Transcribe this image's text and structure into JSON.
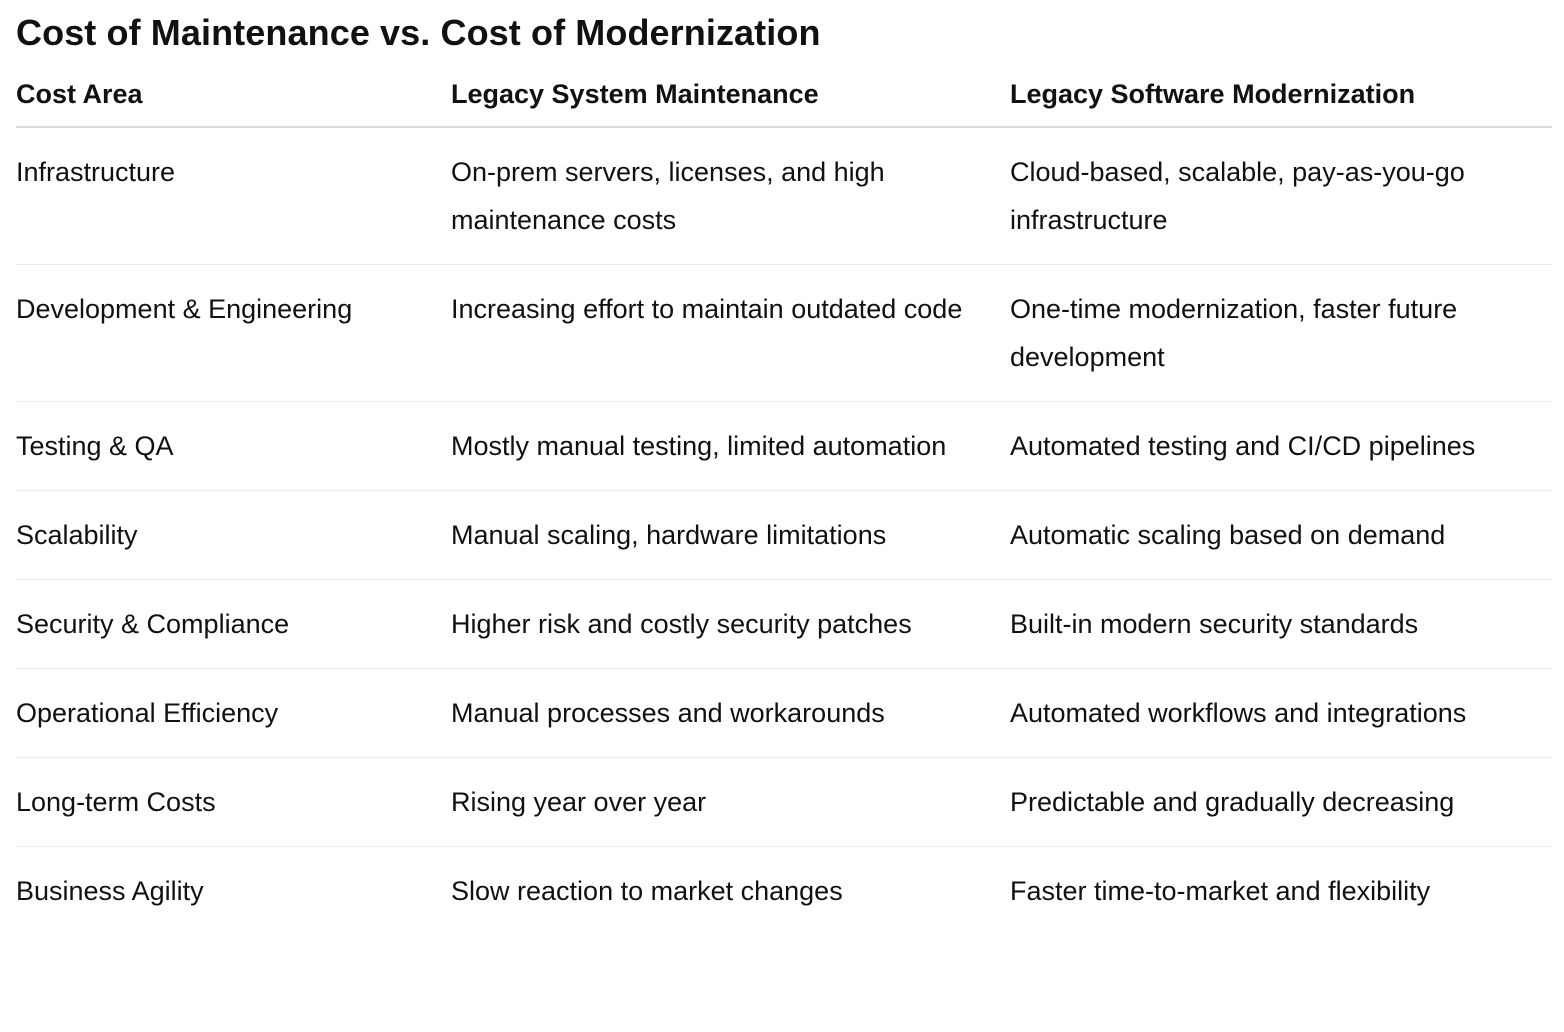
{
  "title": "Cost of Maintenance vs. Cost of Modernization",
  "table": {
    "headers": [
      "Cost Area",
      "Legacy System Maintenance",
      "Legacy Software Modernization"
    ],
    "rows": [
      [
        "Infrastructure",
        "On-prem servers, licenses, and high maintenance costs",
        "Cloud-based, scalable, pay-as-you-go infrastructure"
      ],
      [
        "Development & Engineering",
        "Increasing effort to maintain outdated code",
        "One-time modernization, faster future development"
      ],
      [
        "Testing & QA",
        "Mostly manual testing, limited automation",
        "Automated testing and CI/CD pipelines"
      ],
      [
        "Scalability",
        "Manual scaling, hardware limitations",
        "Automatic scaling based on demand"
      ],
      [
        "Security & Compliance",
        "Higher risk and costly security patches",
        "Built-in modern security standards"
      ],
      [
        "Operational Efficiency",
        "Manual processes and workarounds",
        "Automated workflows and integrations"
      ],
      [
        "Long-term Costs",
        "Rising year over year",
        "Predictable and gradually decreasing"
      ],
      [
        "Business Agility",
        "Slow reaction to market changes",
        "Faster time-to-market and flexibility"
      ]
    ]
  }
}
